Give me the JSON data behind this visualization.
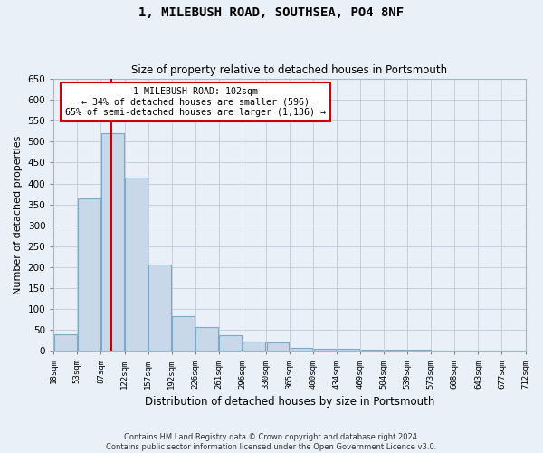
{
  "title": "1, MILEBUSH ROAD, SOUTHSEA, PO4 8NF",
  "subtitle": "Size of property relative to detached houses in Portsmouth",
  "xlabel": "Distribution of detached houses by size in Portsmouth",
  "ylabel": "Number of detached properties",
  "bin_labels": [
    "18sqm",
    "53sqm",
    "87sqm",
    "122sqm",
    "157sqm",
    "192sqm",
    "226sqm",
    "261sqm",
    "296sqm",
    "330sqm",
    "365sqm",
    "400sqm",
    "434sqm",
    "469sqm",
    "504sqm",
    "539sqm",
    "573sqm",
    "608sqm",
    "643sqm",
    "677sqm",
    "712sqm"
  ],
  "bar_heights": [
    40,
    365,
    520,
    415,
    207,
    83,
    57,
    37,
    22,
    21,
    8,
    6,
    6,
    2,
    2,
    2,
    1,
    1,
    1,
    1
  ],
  "bar_color": "#c8d8e8",
  "bar_edge_color": "#7aaac8",
  "annotation_label": "1 MILEBUSH ROAD: 102sqm",
  "annotation_line1": "← 34% of detached houses are smaller (596)",
  "annotation_line2": "65% of semi-detached houses are larger (1,136) →",
  "annotation_box_color": "#cc0000",
  "annotation_bg": "#ffffff",
  "ylim": [
    0,
    650
  ],
  "yticks": [
    0,
    50,
    100,
    150,
    200,
    250,
    300,
    350,
    400,
    450,
    500,
    550,
    600,
    650
  ],
  "grid_color": "#c0ccd8",
  "bg_color": "#eaf0f8",
  "footer1": "Contains HM Land Registry data © Crown copyright and database right 2024.",
  "footer2": "Contains public sector information licensed under the Open Government Licence v3.0."
}
